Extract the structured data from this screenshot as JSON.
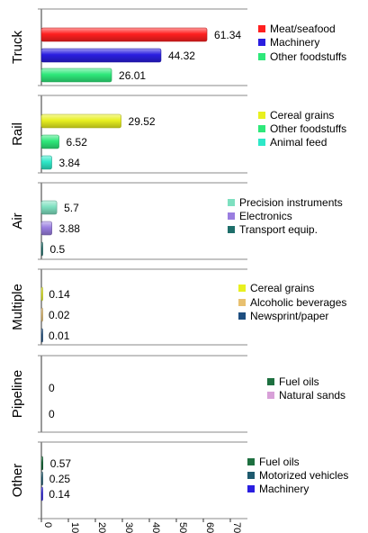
{
  "chart_data": {
    "type": "bar",
    "orientation": "horizontal",
    "xlim": [
      0,
      70
    ],
    "x_ticks": [
      "0",
      "10",
      "20",
      "30",
      "40",
      "50",
      "60",
      "70"
    ],
    "grid": false,
    "panels": [
      {
        "label": "Truck",
        "bars": [
          {
            "name": "Meat/seafood",
            "value": 61.34,
            "value_label": "61.34",
            "color": "#ff2020"
          },
          {
            "name": "Machinery",
            "value": 44.32,
            "value_label": "44.32",
            "color": "#2a1ee0"
          },
          {
            "name": "Other foodstuffs",
            "value": 26.01,
            "value_label": "26.01",
            "color": "#2ee87a"
          }
        ]
      },
      {
        "label": "Rail",
        "bars": [
          {
            "name": "Cereal grains",
            "value": 29.52,
            "value_label": "29.52",
            "color": "#e8f020"
          },
          {
            "name": "Other foodstuffs",
            "value": 6.52,
            "value_label": "6.52",
            "color": "#2ee87a"
          },
          {
            "name": "Animal feed",
            "value": 3.84,
            "value_label": "3.84",
            "color": "#2ee8c8"
          }
        ]
      },
      {
        "label": "Air",
        "bars": [
          {
            "name": "Precision instruments",
            "value": 5.7,
            "value_label": "5.7",
            "color": "#7ee0c0"
          },
          {
            "name": "Electronics",
            "value": 3.88,
            "value_label": "3.88",
            "color": "#9a7ee0"
          },
          {
            "name": "Transport equip.",
            "value": 0.5,
            "value_label": "0.5",
            "color": "#1e6e6a"
          }
        ]
      },
      {
        "label": "Multiple",
        "bars": [
          {
            "name": "Cereal grains",
            "value": 0.14,
            "value_label": "0.14",
            "color": "#e8f020"
          },
          {
            "name": "Alcoholic beverages",
            "value": 0.02,
            "value_label": "0.02",
            "color": "#e8c070"
          },
          {
            "name": "Newsprint/paper",
            "value": 0.01,
            "value_label": "0.01",
            "color": "#1e4e80"
          }
        ]
      },
      {
        "label": "Pipeline",
        "bars": [
          {
            "name": "Fuel oils",
            "value": 0,
            "value_label": "0",
            "color": "#1e7040"
          },
          {
            "name": "Natural sands",
            "value": 0,
            "value_label": "0",
            "color": "#d8a0d8"
          }
        ]
      },
      {
        "label": "Other",
        "bars": [
          {
            "name": "Fuel oils",
            "value": 0.57,
            "value_label": "0.57",
            "color": "#1e7040"
          },
          {
            "name": "Motorized vehicles",
            "value": 0.25,
            "value_label": "0.25",
            "color": "#1e5a6e"
          },
          {
            "name": "Machinery",
            "value": 0.14,
            "value_label": "0.14",
            "color": "#2a1ee0"
          }
        ]
      }
    ]
  }
}
